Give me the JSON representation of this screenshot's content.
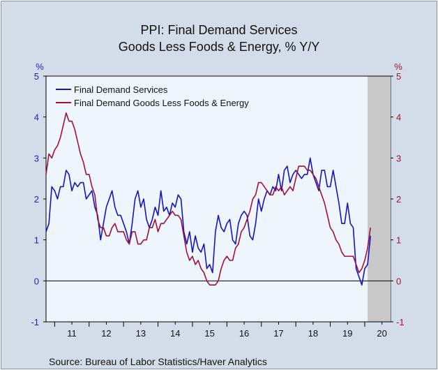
{
  "chart_data": {
    "type": "line",
    "title": [
      "PPI: Final Demand Services",
      "Goods Less Foods & Energy, % Y/Y"
    ],
    "left_unit": "%",
    "right_unit": "%",
    "ylim": [
      -1,
      5
    ],
    "y_ticks": [
      -1,
      0,
      1,
      2,
      3,
      4,
      5
    ],
    "x_tick_labels": [
      "11",
      "12",
      "13",
      "14",
      "15",
      "16",
      "17",
      "18",
      "19",
      "20"
    ],
    "x_start": "2010-10",
    "x_end": "2020-10",
    "recession_shading": {
      "start": "2020-02",
      "end": "2020-10",
      "color": "#c8c8c8"
    },
    "zero_line": true,
    "legend_position": "top-left",
    "source": "Source:  Bureau of Labor Statistics/Haver Analytics",
    "colors": {
      "left_axis": "#1f1fbf",
      "right_axis": "#a0103a",
      "plot_bg": "#eef5fd",
      "frame_bg": "#d2dde9"
    },
    "series": [
      {
        "name": "Final Demand Services",
        "color": "#1414c0",
        "values": [
          1.2,
          1.4,
          2.3,
          2.2,
          2.0,
          2.3,
          2.3,
          2.7,
          2.6,
          2.2,
          2.4,
          2.3,
          2.4,
          2.4,
          2.0,
          2.1,
          2.2,
          1.8,
          1.6,
          1.0,
          1.4,
          1.8,
          2.0,
          2.2,
          1.8,
          1.6,
          1.6,
          1.4,
          1.2,
          0.9,
          1.4,
          2.0,
          2.2,
          1.8,
          2.0,
          1.5,
          1.3,
          1.5,
          1.8,
          1.6,
          2.2,
          1.7,
          1.8,
          1.6,
          1.9,
          1.8,
          2.1,
          2.0,
          1.2,
          0.9,
          1.2,
          0.7,
          1.1,
          0.8,
          0.7,
          0.9,
          0.3,
          0.4,
          0.2,
          1.2,
          1.6,
          1.3,
          1.2,
          1.4,
          1.5,
          1.0,
          0.9,
          1.4,
          1.6,
          1.7,
          1.6,
          1.1,
          1.0,
          1.4,
          2.0,
          1.7,
          2.0,
          2.2,
          2.1,
          2.3,
          2.2,
          2.6,
          2.2,
          2.7,
          2.8,
          2.4,
          2.6,
          2.7,
          2.6,
          2.5,
          2.6,
          2.6,
          3.0,
          2.6,
          2.4,
          2.2,
          2.7,
          2.7,
          2.3,
          2.3,
          2.7,
          2.3,
          1.9,
          1.4,
          1.4,
          1.9,
          1.4,
          1.3,
          0.3,
          0.1,
          -0.1,
          0.3,
          0.4,
          1.1
        ]
      },
      {
        "name": "Final Demand Goods Less Foods & Energy",
        "color": "#a0103a",
        "values": [
          2.6,
          3.1,
          3.0,
          3.2,
          3.3,
          3.5,
          3.8,
          4.1,
          3.9,
          3.9,
          3.7,
          3.4,
          3.1,
          2.9,
          2.6,
          2.6,
          2.3,
          2.1,
          1.5,
          1.3,
          1.3,
          1.1,
          1.1,
          1.3,
          1.4,
          1.2,
          1.2,
          1.2,
          1.0,
          0.9,
          1.2,
          1.2,
          0.9,
          0.9,
          1.0,
          1.0,
          1.3,
          1.3,
          1.5,
          1.2,
          1.4,
          1.4,
          1.5,
          1.6,
          1.7,
          1.6,
          1.6,
          1.5,
          1.1,
          0.7,
          0.5,
          0.6,
          0.4,
          0.5,
          0.3,
          0.2,
          0.0,
          -0.1,
          -0.1,
          -0.1,
          0.0,
          0.3,
          0.5,
          0.6,
          0.5,
          0.5,
          0.8,
          0.9,
          1.2,
          1.3,
          1.5,
          1.7,
          2.0,
          2.1,
          2.4,
          2.4,
          2.3,
          2.2,
          2.1,
          2.1,
          2.3,
          2.2,
          2.3,
          2.1,
          2.2,
          2.3,
          2.2,
          2.5,
          2.8,
          2.8,
          2.8,
          2.7,
          2.7,
          2.6,
          2.5,
          2.3,
          2.1,
          1.9,
          1.6,
          1.3,
          1.2,
          1.0,
          0.9,
          0.7,
          0.6,
          0.6,
          0.6,
          0.6,
          0.4,
          0.2,
          0.3,
          0.5,
          0.8,
          1.3
        ]
      }
    ]
  }
}
